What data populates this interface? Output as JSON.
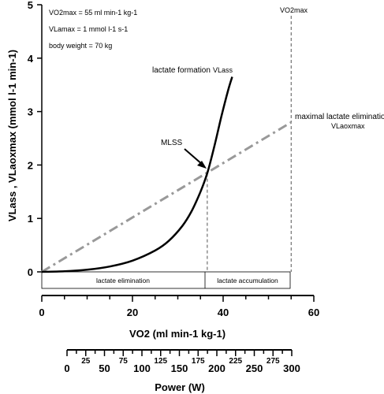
{
  "chart_data": {
    "type": "line",
    "x_axis": {
      "label": "VO2 (ml min-1 kg-1)",
      "range": [
        0,
        60
      ],
      "ticks": [
        "0",
        "20",
        "40",
        "60"
      ]
    },
    "y_axis": {
      "label": "VLass , VLaoxmax (mmol l-1 min-1)",
      "range": [
        0,
        5
      ],
      "ticks": [
        "0",
        "1",
        "2",
        "3",
        "4",
        "5"
      ]
    },
    "secondary_x_axis": {
      "label": "Power (W)",
      "range": [
        0,
        300
      ],
      "ticks": [
        "0",
        "25",
        "50",
        "75",
        "100",
        "125",
        "150",
        "175",
        "200",
        "225",
        "250",
        "275",
        "300"
      ]
    },
    "series": [
      {
        "name": "lactate formation",
        "style": "solid",
        "color": "#000000",
        "x": [
          0,
          5,
          10,
          15,
          20,
          25,
          28,
          31,
          33,
          35,
          36.5,
          38,
          39.5,
          41,
          42
        ],
        "y": [
          0,
          0.01,
          0.04,
          0.1,
          0.21,
          0.4,
          0.58,
          0.86,
          1.13,
          1.5,
          1.85,
          2.33,
          2.87,
          3.37,
          3.65
        ]
      },
      {
        "name": "maximal lactate elimination",
        "style": "dash-dot",
        "color": "#999999",
        "x": [
          0,
          55
        ],
        "y": [
          0,
          2.8
        ]
      }
    ],
    "vertical_lines": [
      {
        "x": 36.5,
        "y_top": 1.85,
        "style": "dashed"
      },
      {
        "x": 55,
        "y_top": 5,
        "style": "dashed"
      }
    ],
    "zones": [
      {
        "label": "lactate elimination",
        "x_start": 0,
        "x_end": 36.5
      },
      {
        "label": "lactate accumulation",
        "x_start": 36.5,
        "x_end": 55
      }
    ],
    "annotations": {
      "mlss": "MLSS",
      "lactate_formation": "lactate formation",
      "vla_ss": "VLass",
      "max_elim": "maximal lactate elimination",
      "vla_oxmax": "VLaoxmax",
      "vo2max_line": "VO2max"
    },
    "notes": [
      "VO2max = 55 ml min-1 kg-1",
      "VLamax = 1 mmol l-1 s-1",
      "body weight = 70 kg"
    ],
    "grid": false
  }
}
